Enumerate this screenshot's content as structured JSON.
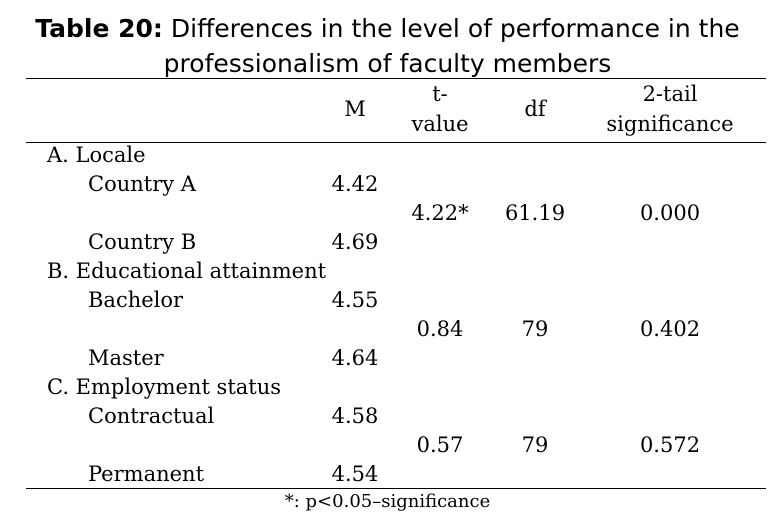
{
  "title": {
    "label": "Table 20:",
    "line1_rest": " Differences in the level of performance in the",
    "line2": "professionalism of faculty members"
  },
  "headers": {
    "m": "M",
    "t_line1": "t-",
    "t_line2": "value",
    "df": "df",
    "sig_line1": "2-tail",
    "sig_line2": "significance"
  },
  "groups": [
    {
      "name": "A. Locale",
      "rows": [
        {
          "label": "Country A",
          "m": "4.42"
        },
        {
          "label": "Country B",
          "m": "4.69"
        }
      ],
      "t": "4.22*",
      "df": "61.19",
      "sig": "0.000"
    },
    {
      "name": "B. Educational attainment",
      "rows": [
        {
          "label": "Bachelor",
          "m": "4.55"
        },
        {
          "label": "Master",
          "m": "4.64"
        }
      ],
      "t": "0.84",
      "df": "79",
      "sig": "0.402"
    },
    {
      "name": "C. Employment status",
      "rows": [
        {
          "label": "Contractual",
          "m": "4.58"
        },
        {
          "label": "Permanent",
          "m": "4.54"
        }
      ],
      "t": "0.57",
      "df": "79",
      "sig": "0.572"
    }
  ],
  "footnote": "*: p<0.05–significance"
}
